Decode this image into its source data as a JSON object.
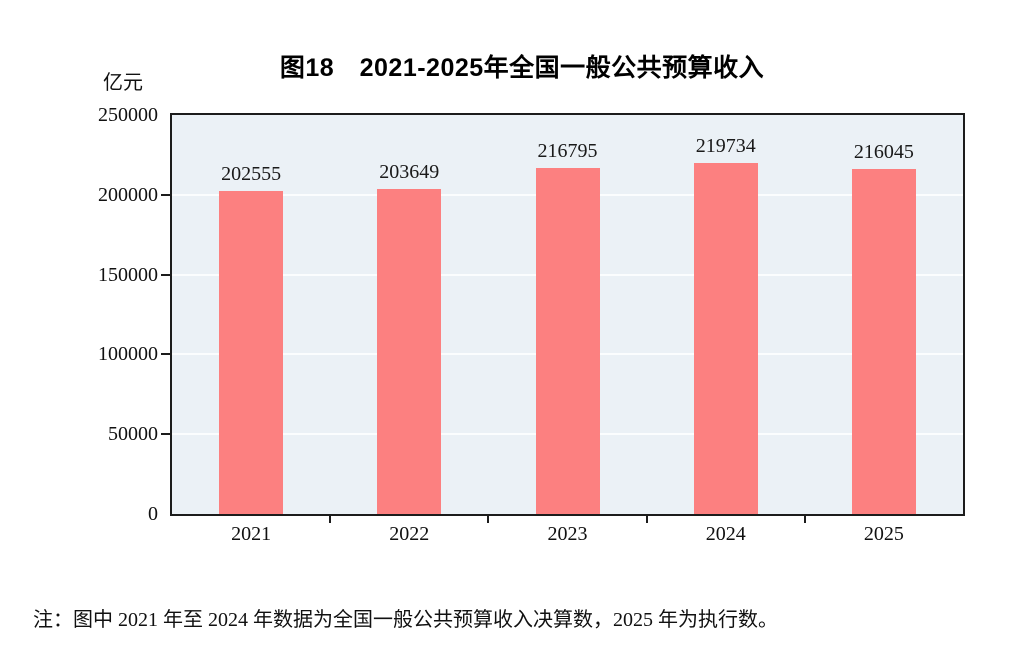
{
  "page": {
    "title": "图18　2021-2025年全国一般公共预算收入",
    "note": "注：图中 2021 年至 2024 年数据为全国一般公共预算收入决算数，2025 年为执行数。"
  },
  "chart_data": {
    "type": "bar",
    "title": "图18　2021-2025年全国一般公共预算收入",
    "unit_label": "亿元",
    "categories": [
      "2021",
      "2022",
      "2023",
      "2024",
      "2025"
    ],
    "values": [
      202555,
      203649,
      216795,
      219734,
      216045
    ],
    "xlabel": "",
    "ylabel": "亿元",
    "ylim": [
      0,
      250000
    ],
    "ytick_interval": 50000,
    "yticks": [
      0,
      50000,
      100000,
      150000,
      200000,
      250000
    ],
    "grid": true,
    "legend_position": "none",
    "colors": {
      "bar": "#fc8080",
      "plot_background": "#ebf1f6",
      "gridline": "#fbfdfe",
      "axis": "#1c1c1c",
      "text": "#111111"
    },
    "note": "注：图中 2021 年至 2024 年数据为全国一般公共预算收入决算数，2025 年为执行数。"
  }
}
